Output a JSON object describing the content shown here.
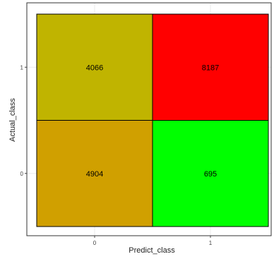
{
  "chart_data": {
    "type": "heatmap",
    "title": "",
    "xlabel": "Predict_class",
    "ylabel": "Actual_class",
    "x_categories": [
      "0",
      "1"
    ],
    "y_categories": [
      "0",
      "1"
    ],
    "grid": true,
    "cells": [
      {
        "x": "0",
        "y": "1",
        "value": 4066,
        "label": "4066",
        "color": "#c0b400"
      },
      {
        "x": "1",
        "y": "1",
        "value": 8187,
        "label": "8187",
        "color": "#ff0000"
      },
      {
        "x": "0",
        "y": "0",
        "value": 4904,
        "label": "4904",
        "color": "#d0a000"
      },
      {
        "x": "1",
        "y": "0",
        "value": 695,
        "label": "695",
        "color": "#00ff00"
      }
    ]
  },
  "style": {
    "panel_border_color": "#333333",
    "grid_color": "#ebebeb",
    "tick_color": "#444444",
    "axis_title_color": "#222222",
    "cell_border_color": "#000000",
    "text_color": "#000000"
  }
}
